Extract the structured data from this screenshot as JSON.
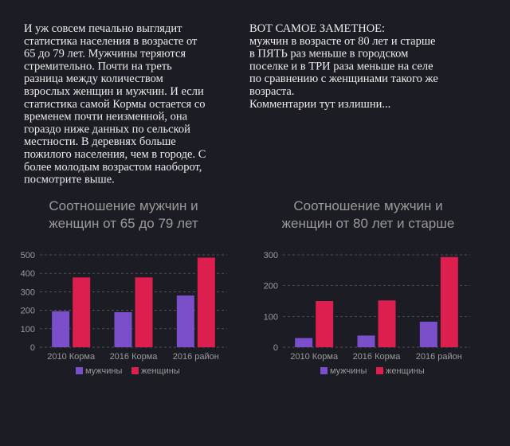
{
  "texts": {
    "left": [
      "И уж совсем печально выглядит",
      "статистика населения в возрасте от",
      "65 до 79 лет. Мужчины теряются",
      "стремительно. Почти на треть",
      "разница между количеством",
      "взрослых женщин и мужчин. И если",
      "статистика самой Кормы остается со",
      "временем почти неизменной, она",
      "гораздо ниже данных по сельской",
      "местности. В деревнях больше",
      "пожилого населения, чем в городе. С",
      "более молодым возрастом наоборот,",
      "посмотрите выше."
    ],
    "right": [
      "ВОТ САМОЕ ЗАМЕТНОЕ:",
      "мужчин в возрасте от 80 лет и старше",
      "в ПЯТЬ раз меньше в городском",
      "поселке и в ТРИ раза меньше на селе",
      "по сравнению с женщинами такого же",
      "возраста.",
      "Комментарии тут излишни..."
    ]
  },
  "chart_data": [
    {
      "type": "bar",
      "title": [
        "Соотношение мужчин и",
        "женщин от 65 до 79 лет"
      ],
      "categories": [
        "2010 Корма",
        "2016 Корма",
        "2016 район"
      ],
      "series": [
        {
          "name": "мужчины",
          "color": "#7b4fc9",
          "values": [
            195,
            190,
            280
          ]
        },
        {
          "name": "женщины",
          "color": "#dc1f4e",
          "values": [
            378,
            378,
            485
          ]
        }
      ],
      "ylim": [
        0,
        500
      ],
      "yticks": [
        0,
        100,
        200,
        300,
        400,
        500
      ],
      "grid": true
    },
    {
      "type": "bar",
      "title": [
        "Соотношение мужчин и",
        "женщин от 80 лет и старше"
      ],
      "categories": [
        "2010 Корма",
        "2016 Корма",
        "2016 район"
      ],
      "series": [
        {
          "name": "мужчины",
          "color": "#7b4fc9",
          "values": [
            30,
            38,
            83
          ]
        },
        {
          "name": "женщины",
          "color": "#dc1f4e",
          "values": [
            150,
            152,
            293
          ]
        }
      ],
      "ylim": [
        0,
        300
      ],
      "yticks": [
        0,
        100,
        200,
        300
      ],
      "grid": true
    }
  ]
}
